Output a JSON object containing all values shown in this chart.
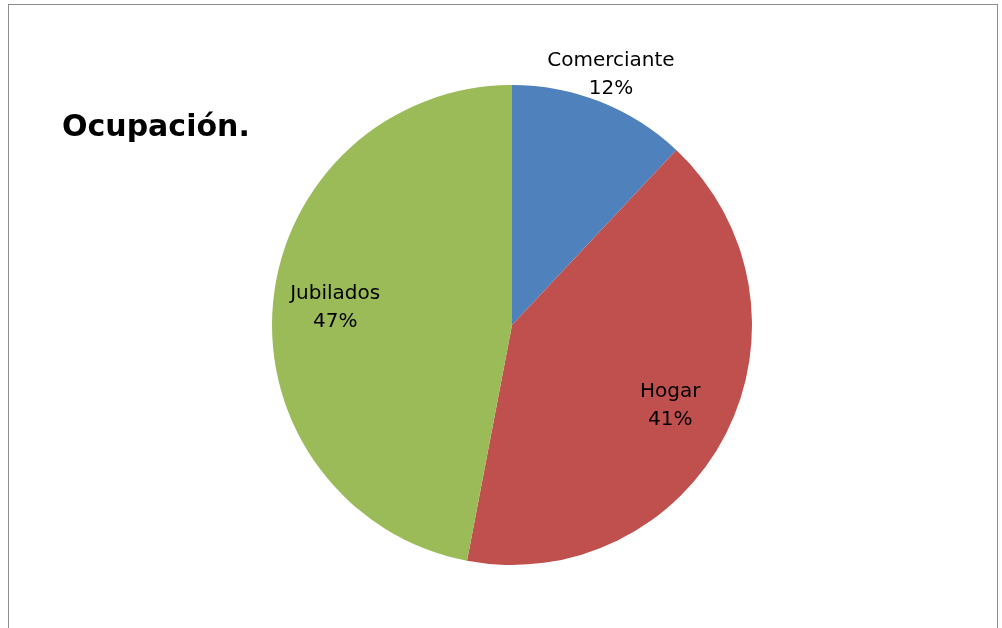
{
  "chart_data": {
    "type": "pie",
    "title": "Ocupación.",
    "categories": [
      "Comerciante",
      "Hogar",
      "Jubilados"
    ],
    "values": [
      12,
      41,
      47
    ],
    "colors": [
      "#4f81bd",
      "#c0504d",
      "#9bbb59"
    ],
    "value_labels": [
      "12%",
      "41%",
      "47%"
    ],
    "legend": false
  }
}
